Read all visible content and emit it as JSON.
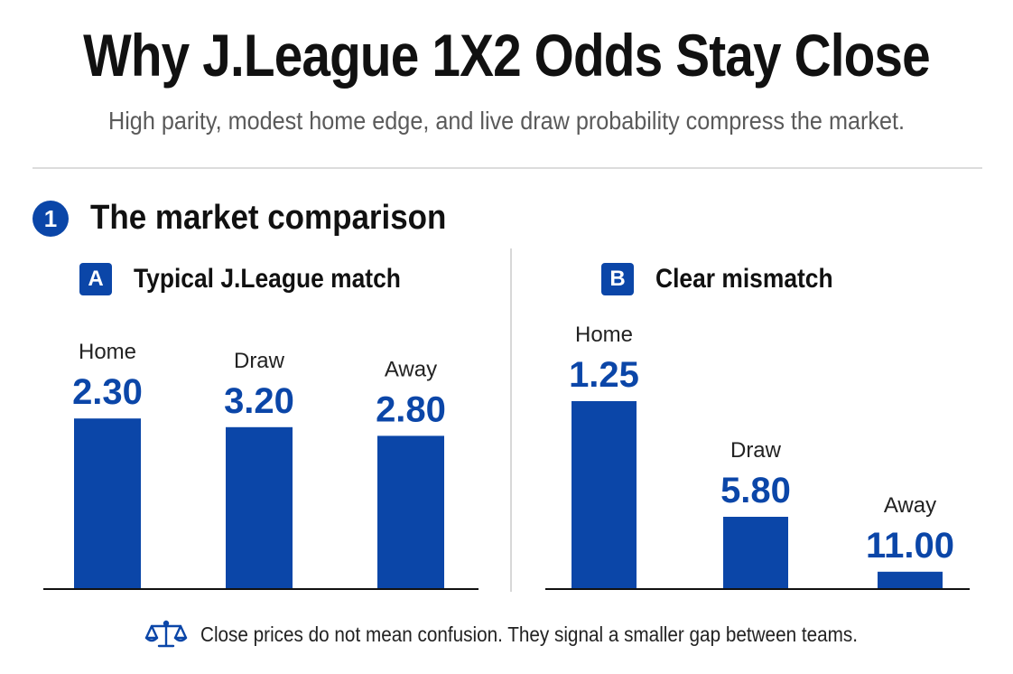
{
  "header": {
    "title": "Why J.League 1X2 Odds Stay Close",
    "subtitle": "High parity, modest home edge, and live draw probability compress the market."
  },
  "section": {
    "number": "1",
    "title": "The market comparison"
  },
  "colors": {
    "accent": "#0b46a8",
    "bar": "#0b46a8",
    "text": "#111111",
    "muted": "#5a5a5a"
  },
  "chart_data": [
    {
      "type": "bar",
      "badge": "A",
      "title": "Typical J.League match",
      "categories": [
        "Home",
        "Draw",
        "Away"
      ],
      "values": [
        2.3,
        3.2,
        2.8
      ],
      "value_labels": [
        "2.30",
        "3.20",
        "2.80"
      ],
      "bar_heights_relative": [
        0.59,
        0.56,
        0.53
      ]
    },
    {
      "type": "bar",
      "badge": "B",
      "title": "Clear mismatch",
      "categories": [
        "Home",
        "Draw",
        "Away"
      ],
      "values": [
        1.25,
        5.8,
        11.0
      ],
      "value_labels": [
        "1.25",
        "5.80",
        "11.00"
      ],
      "bar_heights_relative": [
        0.65,
        0.25,
        0.06
      ]
    }
  ],
  "footer": {
    "icon": "scales-icon",
    "text": "Close prices do not mean confusion. They signal a smaller gap between teams."
  }
}
